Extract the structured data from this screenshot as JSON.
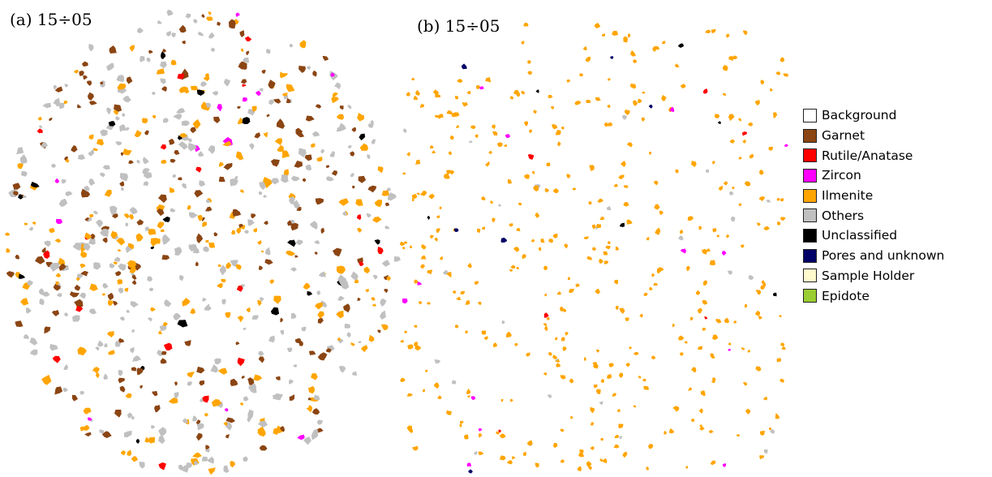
{
  "panels": [
    {
      "label": "(a) 15÷05",
      "dominant": "mixed"
    },
    {
      "label": "(b) 15÷05",
      "dominant": "Ilmenite"
    }
  ],
  "legend": [
    {
      "name": "Background",
      "color": "#ffffff"
    },
    {
      "name": "Garnet",
      "color": "#8b4513"
    },
    {
      "name": "Rutile/Anatase",
      "color": "#ff0000"
    },
    {
      "name": "Zircon",
      "color": "#ff00ff"
    },
    {
      "name": "Ilmenite",
      "color": "#ffa500"
    },
    {
      "name": "Others",
      "color": "#c0c0c0"
    },
    {
      "name": "Unclassified",
      "color": "#000000"
    },
    {
      "name": "Pores and unknown",
      "color": "#000066"
    },
    {
      "name": "Sample Holder",
      "color": "#fffacd"
    },
    {
      "name": "Epidote",
      "color": "#9acd32"
    }
  ]
}
